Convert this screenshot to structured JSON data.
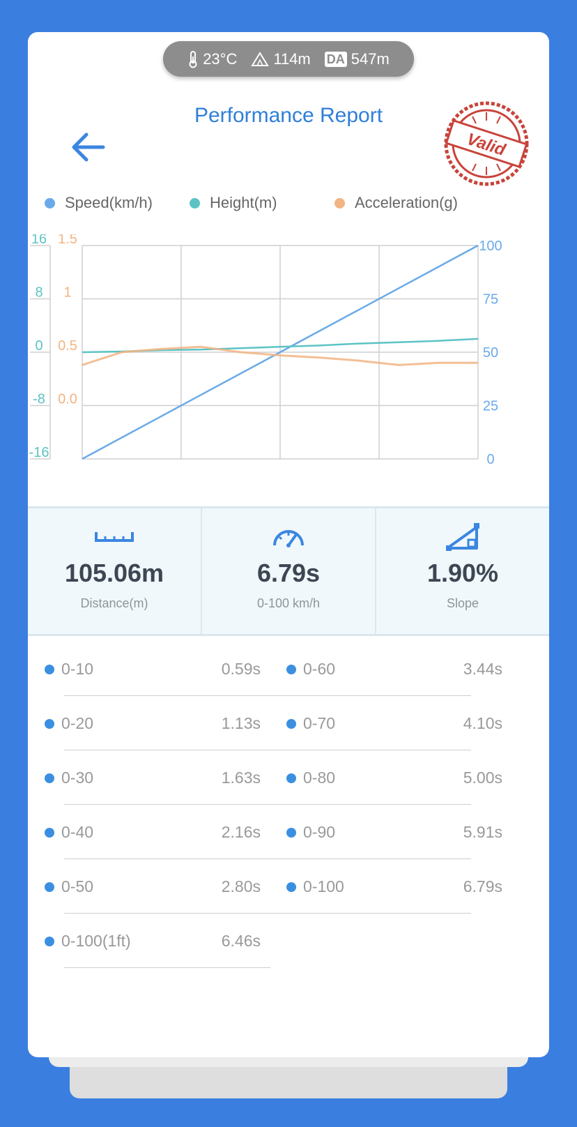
{
  "status_bar": {
    "temperature": "23°C",
    "altitude": "114m",
    "da_label": "DA",
    "density_altitude": "547m"
  },
  "header": {
    "title": "Performance Report",
    "back_icon": "arrow-left-icon",
    "stamp_text": "Valid"
  },
  "legend": [
    {
      "label": "Speed(km/h)",
      "color": "#6aaae8"
    },
    {
      "label": "Height(m)",
      "color": "#5cc3c4"
    },
    {
      "label": "Acceleration(g)",
      "color": "#f2b482"
    }
  ],
  "chart_data": {
    "type": "line",
    "height_axis": {
      "ticks": [
        "16",
        "8",
        "0",
        "-8",
        "-16"
      ],
      "ylim": [
        -16,
        16
      ],
      "color": "#5cc3c4"
    },
    "accel_axis": {
      "ticks": [
        "1.5",
        "1",
        "0.5",
        "0.0"
      ],
      "ylim": [
        -0.5,
        1.5
      ],
      "color": "#f2b482"
    },
    "speed_axis": {
      "ticks": [
        "100",
        "75",
        "50",
        "25",
        "0"
      ],
      "ylim": [
        0,
        100
      ],
      "color": "#6aaae8"
    },
    "x_points": [
      0,
      0.1,
      0.2,
      0.3,
      0.4,
      0.5,
      0.6,
      0.7,
      0.8,
      0.9,
      1.0
    ],
    "series": [
      {
        "name": "Speed(km/h)",
        "color": "#6aaae8",
        "values": [
          0,
          10,
          20,
          30,
          40,
          50,
          60,
          70,
          80,
          90,
          100
        ]
      },
      {
        "name": "Height(m)",
        "color": "#5cc3c4",
        "values": [
          0,
          0.1,
          0.3,
          0.4,
          0.6,
          0.8,
          1.0,
          1.3,
          1.5,
          1.7,
          2.0
        ]
      },
      {
        "name": "Acceleration(g)",
        "color": "#f2b482",
        "values": [
          0.38,
          0.5,
          0.53,
          0.55,
          0.5,
          0.47,
          0.45,
          0.42,
          0.38,
          0.4,
          0.4
        ]
      }
    ],
    "grid": true
  },
  "stats": [
    {
      "icon": "ruler-icon",
      "value": "105.06m",
      "label": "Distance(m)"
    },
    {
      "icon": "speedometer-icon",
      "value": "6.79s",
      "label": "0-100 km/h"
    },
    {
      "icon": "slope-icon",
      "value": "1.90%",
      "label": "Slope"
    }
  ],
  "splits_left": [
    {
      "range": "0-10",
      "time": "0.59s"
    },
    {
      "range": "0-20",
      "time": "1.13s"
    },
    {
      "range": "0-30",
      "time": "1.63s"
    },
    {
      "range": "0-40",
      "time": "2.16s"
    },
    {
      "range": "0-50",
      "time": "2.80s"
    },
    {
      "range": "0-100(1ft)",
      "time": "6.46s"
    }
  ],
  "splits_right": [
    {
      "range": "0-60",
      "time": "3.44s"
    },
    {
      "range": "0-70",
      "time": "4.10s"
    },
    {
      "range": "0-80",
      "time": "5.00s"
    },
    {
      "range": "0-90",
      "time": "5.91s"
    },
    {
      "range": "0-100",
      "time": "6.79s"
    }
  ]
}
